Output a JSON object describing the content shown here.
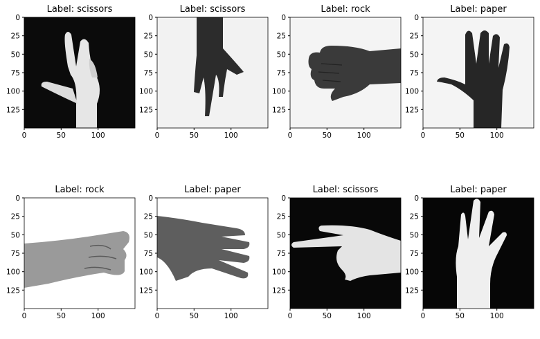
{
  "panels": [
    {
      "title": "Label: scissors",
      "subject": "hand-scissors",
      "background": "dark"
    },
    {
      "title": "Label: scissors",
      "subject": "hand-scissors",
      "background": "light"
    },
    {
      "title": "Label: rock",
      "subject": "hand-rock",
      "background": "light"
    },
    {
      "title": "Label: paper",
      "subject": "hand-paper",
      "background": "light"
    },
    {
      "title": "Label: rock",
      "subject": "hand-rock",
      "background": "light"
    },
    {
      "title": "Label: paper",
      "subject": "hand-paper",
      "background": "light"
    },
    {
      "title": "Label: scissors",
      "subject": "hand-scissors",
      "background": "dark"
    },
    {
      "title": "Label: paper",
      "subject": "hand-paper",
      "background": "dark"
    }
  ],
  "axes": {
    "x_ticks": [
      "0",
      "50",
      "100"
    ],
    "y_ticks": [
      "0",
      "25",
      "50",
      "75",
      "100",
      "125"
    ]
  }
}
